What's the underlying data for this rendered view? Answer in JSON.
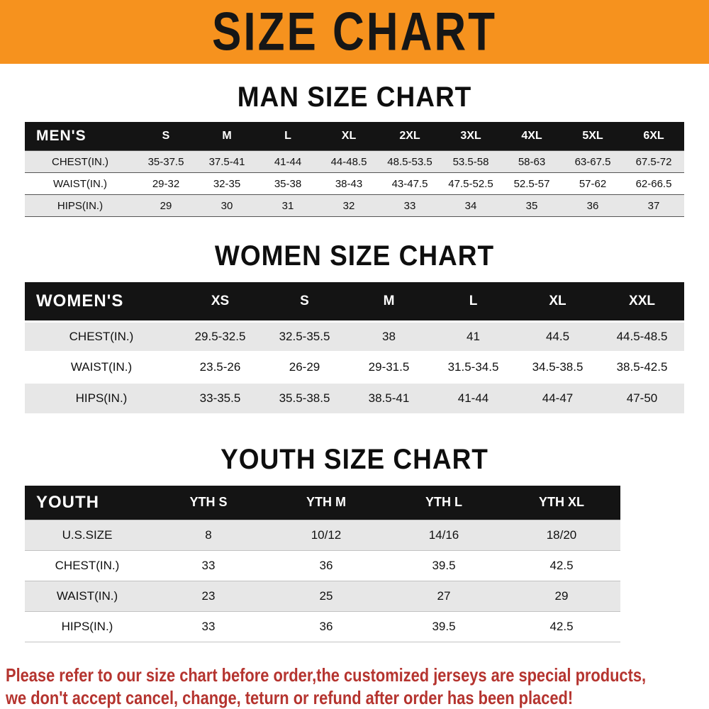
{
  "banner": {
    "title": "SIZE CHART"
  },
  "colors": {
    "banner-bg": "#F6921E",
    "header-bg": "#141414",
    "row-alt": "#E7E7E7",
    "footer-red": "#B5342F"
  },
  "chart_data": [
    {
      "type": "table",
      "title": "MAN SIZE CHART",
      "header_label": "MEN'S",
      "columns": [
        "S",
        "M",
        "L",
        "XL",
        "2XL",
        "3XL",
        "4XL",
        "5XL",
        "6XL"
      ],
      "rows": [
        {
          "label": "CHEST(IN.)",
          "values": [
            "35-37.5",
            "37.5-41",
            "41-44",
            "44-48.5",
            "48.5-53.5",
            "53.5-58",
            "58-63",
            "63-67.5",
            "67.5-72"
          ]
        },
        {
          "label": "WAIST(IN.)",
          "values": [
            "29-32",
            "32-35",
            "35-38",
            "38-43",
            "43-47.5",
            "47.5-52.5",
            "52.5-57",
            "57-62",
            "62-66.5"
          ]
        },
        {
          "label": "HIPS(IN.)",
          "values": [
            "29",
            "30",
            "31",
            "32",
            "33",
            "34",
            "35",
            "36",
            "37"
          ]
        }
      ]
    },
    {
      "type": "table",
      "title": "WOMEN SIZE CHART",
      "header_label": "WOMEN'S",
      "columns": [
        "XS",
        "S",
        "M",
        "L",
        "XL",
        "XXL"
      ],
      "rows": [
        {
          "label": "CHEST(IN.)",
          "values": [
            "29.5-32.5",
            "32.5-35.5",
            "38",
            "41",
            "44.5",
            "44.5-48.5"
          ]
        },
        {
          "label": "WAIST(IN.)",
          "values": [
            "23.5-26",
            "26-29",
            "29-31.5",
            "31.5-34.5",
            "34.5-38.5",
            "38.5-42.5"
          ]
        },
        {
          "label": "HIPS(IN.)",
          "values": [
            "33-35.5",
            "35.5-38.5",
            "38.5-41",
            "41-44",
            "44-47",
            "47-50"
          ]
        }
      ]
    },
    {
      "type": "table",
      "title": "YOUTH SIZE CHART",
      "header_label": "YOUTH",
      "columns": [
        "YTH S",
        "YTH M",
        "YTH L",
        "YTH XL"
      ],
      "rows": [
        {
          "label": "U.S.SIZE",
          "values": [
            "8",
            "10/12",
            "14/16",
            "18/20"
          ]
        },
        {
          "label": "CHEST(IN.)",
          "values": [
            "33",
            "36",
            "39.5",
            "42.5"
          ]
        },
        {
          "label": "WAIST(IN.)",
          "values": [
            "23",
            "25",
            "27",
            "29"
          ]
        },
        {
          "label": "HIPS(IN.)",
          "values": [
            "33",
            "36",
            "39.5",
            "42.5"
          ]
        }
      ]
    }
  ],
  "footer": {
    "line1": "Please refer to our size chart before order,the customized jerseys are special products,",
    "line2": "we don't accept cancel, change, teturn or refund after order has been placed!"
  }
}
